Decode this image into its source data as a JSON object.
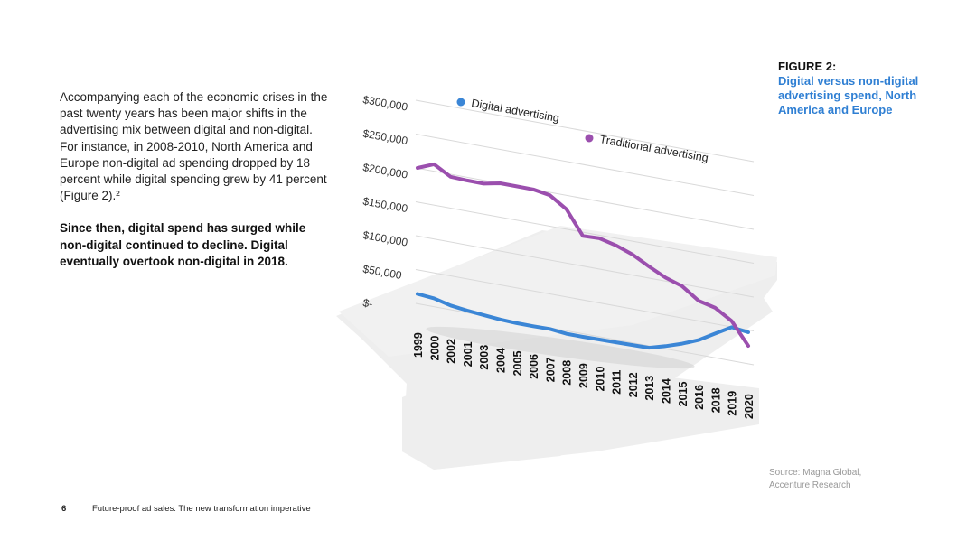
{
  "body": {
    "paragraph1": "Accompanying each of the economic crises in the past twenty years has been major shifts in the advertising mix between digital and non-digital. For instance, in 2008-2010, North America and Europe non-digital ad spending dropped by 18 percent while digital spending grew by 41 percent (Figure 2).²",
    "paragraph2": "Since then, digital spend has surged while non-digital continued to decline. Digital eventually overtook non-digital in 2018."
  },
  "figure": {
    "label": "FIGURE 2:",
    "title": "Digital versus non-digital advertising spend, North America and Europe"
  },
  "source": {
    "line1": "Source: Magna Global,",
    "line2": "Accenture Research"
  },
  "footer": {
    "page_number": "6",
    "doc_title": "Future-proof ad sales: The new transformation imperative"
  },
  "colors": {
    "digital": "#3b86d6",
    "traditional": "#9b4fae"
  },
  "chart_data": {
    "type": "line",
    "title": "",
    "xlabel": "",
    "ylabel": "",
    "x": [
      "1999",
      "2000",
      "2002",
      "2001",
      "2003",
      "2004",
      "2005",
      "2006",
      "2007",
      "2008",
      "2009",
      "2010",
      "2011",
      "2012",
      "2013",
      "2014",
      "2015",
      "2016",
      "2018",
      "2019",
      "2020"
    ],
    "y_ticks": [
      "$-",
      "$50,000",
      "$100,000",
      "$150,000",
      "$200,000",
      "$250,000",
      "$300,000"
    ],
    "ylim": [
      0,
      300000
    ],
    "legend": "top",
    "series": [
      {
        "name": "Digital advertising",
        "values": [
          14000,
          12000,
          6000,
          3000,
          1000,
          -1000,
          -2000,
          -2000,
          -1500,
          -4000,
          -4000,
          -3500,
          -3000,
          -2500,
          -2000,
          5000,
          13000,
          23000,
          37000,
          51000,
          48000
        ]
      },
      {
        "name": "Traditional advertising",
        "values": [
          200000,
          210000,
          196000,
          195000,
          195000,
          200000,
          200000,
          200000,
          196000,
          180000,
          145000,
          146000,
          140000,
          131000,
          118000,
          106000,
          98000,
          81000,
          75000,
          60000,
          28000
        ]
      }
    ]
  }
}
